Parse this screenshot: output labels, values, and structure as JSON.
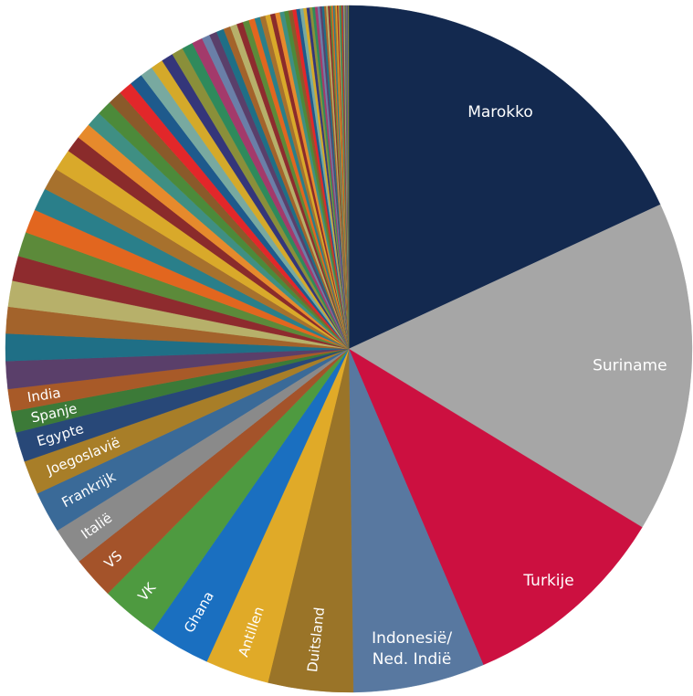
{
  "chart_data": {
    "type": "pie",
    "start": "top",
    "direction": "clockwise",
    "palette": [
      "#5a3f6a",
      "#1f6f86",
      "#a3632b",
      "#b7b06a",
      "#8e2b2e",
      "#5c8a3a",
      "#e2661f",
      "#2a7f8a",
      "#a7712d",
      "#d9a92a",
      "#8a2b2b",
      "#e68a2c",
      "#3f8f83",
      "#4c8a3a",
      "#8a5a2a",
      "#e2272a",
      "#1e5a8c",
      "#78a9a0",
      "#d4a92a",
      "#34367a",
      "#8a8f3a",
      "#2f8a5c",
      "#a33a6b",
      "#6a7fa8"
    ],
    "slices": [
      {
        "label": "Marokko",
        "value": 18.1,
        "color": "#13294f"
      },
      {
        "label": "Suriname",
        "value": 15.6,
        "color": "#a6a6a6"
      },
      {
        "label": "Turkije",
        "value": 9.9,
        "color": "#cc1040"
      },
      {
        "label": "Indonesië/\nNed. Indië",
        "value": 6.2,
        "color": "#5878a0"
      },
      {
        "label": "Duitsland",
        "value": 4.0,
        "color": "#9a7428"
      },
      {
        "label": "Antillen",
        "value": 3.0,
        "color": "#e0aa28"
      },
      {
        "label": "Ghana",
        "value": 2.9,
        "color": "#1a6fc0"
      },
      {
        "label": "VK",
        "value": 2.7,
        "color": "#4e9a40"
      },
      {
        "label": "VS",
        "value": 2.0,
        "color": "#a4532a"
      },
      {
        "label": "Italië",
        "value": 1.75,
        "color": "#8a8a8a"
      },
      {
        "label": "Frankrijk",
        "value": 1.95,
        "color": "#3a6a98"
      },
      {
        "label": "Joegoslavië",
        "value": 1.6,
        "color": "#a87e28"
      },
      {
        "label": "Egypte",
        "value": 1.4,
        "color": "#284878"
      },
      {
        "label": "Spanje",
        "value": 1.0,
        "color": "#3c7a38"
      },
      {
        "label": "India",
        "value": 1.05,
        "color": "#a85a28"
      },
      {
        "value": 1.3
      },
      {
        "value": 1.28
      },
      {
        "value": 1.25
      },
      {
        "value": 1.22
      },
      {
        "value": 1.18
      },
      {
        "value": 1.15
      },
      {
        "value": 1.12
      },
      {
        "value": 1.08
      },
      {
        "value": 1.05
      },
      {
        "value": 1.02
      },
      {
        "value": 0.78
      },
      {
        "value": 0.75
      },
      {
        "value": 0.72
      },
      {
        "value": 0.7
      },
      {
        "value": 0.67
      },
      {
        "value": 0.65
      },
      {
        "value": 0.62
      },
      {
        "value": 0.6
      },
      {
        "value": 0.58
      },
      {
        "value": 0.56
      },
      {
        "value": 0.54
      },
      {
        "value": 0.52
      },
      {
        "value": 0.5
      },
      {
        "value": 0.38
      },
      {
        "value": 0.36
      },
      {
        "value": 0.35
      },
      {
        "value": 0.33
      },
      {
        "value": 0.32
      },
      {
        "value": 0.3
      },
      {
        "value": 0.29
      },
      {
        "value": 0.28
      },
      {
        "value": 0.26
      },
      {
        "value": 0.25
      },
      {
        "value": 0.24
      },
      {
        "value": 0.23
      },
      {
        "value": 0.22
      },
      {
        "value": 0.21
      },
      {
        "value": 0.2
      },
      {
        "value": 0.19
      },
      {
        "value": 0.18
      },
      {
        "value": 0.17
      },
      {
        "value": 0.16
      },
      {
        "value": 0.15
      },
      {
        "value": 0.14
      },
      {
        "value": 0.13
      },
      {
        "value": 0.12
      },
      {
        "value": 0.12
      },
      {
        "value": 0.11
      },
      {
        "value": 0.1
      },
      {
        "value": 0.1
      },
      {
        "value": 0.09
      },
      {
        "value": 0.09
      },
      {
        "value": 0.08
      },
      {
        "value": 0.08
      },
      {
        "value": 0.07
      },
      {
        "value": 0.07
      },
      {
        "value": 0.06
      },
      {
        "value": 0.06
      },
      {
        "value": 0.05
      },
      {
        "value": 0.05
      },
      {
        "value": 0.05
      },
      {
        "value": 0.04
      },
      {
        "value": 0.04
      },
      {
        "value": 0.04
      },
      {
        "value": 0.03
      },
      {
        "value": 0.03
      },
      {
        "value": 0.03
      },
      {
        "value": 0.03
      },
      {
        "value": 0.02
      },
      {
        "value": 0.02
      },
      {
        "value": 0.02
      },
      {
        "value": 0.02
      },
      {
        "value": 0.02
      },
      {
        "value": 0.01
      },
      {
        "value": 0.01
      },
      {
        "value": 0.01
      },
      {
        "value": 0.01
      },
      {
        "value": 0.01
      }
    ]
  }
}
